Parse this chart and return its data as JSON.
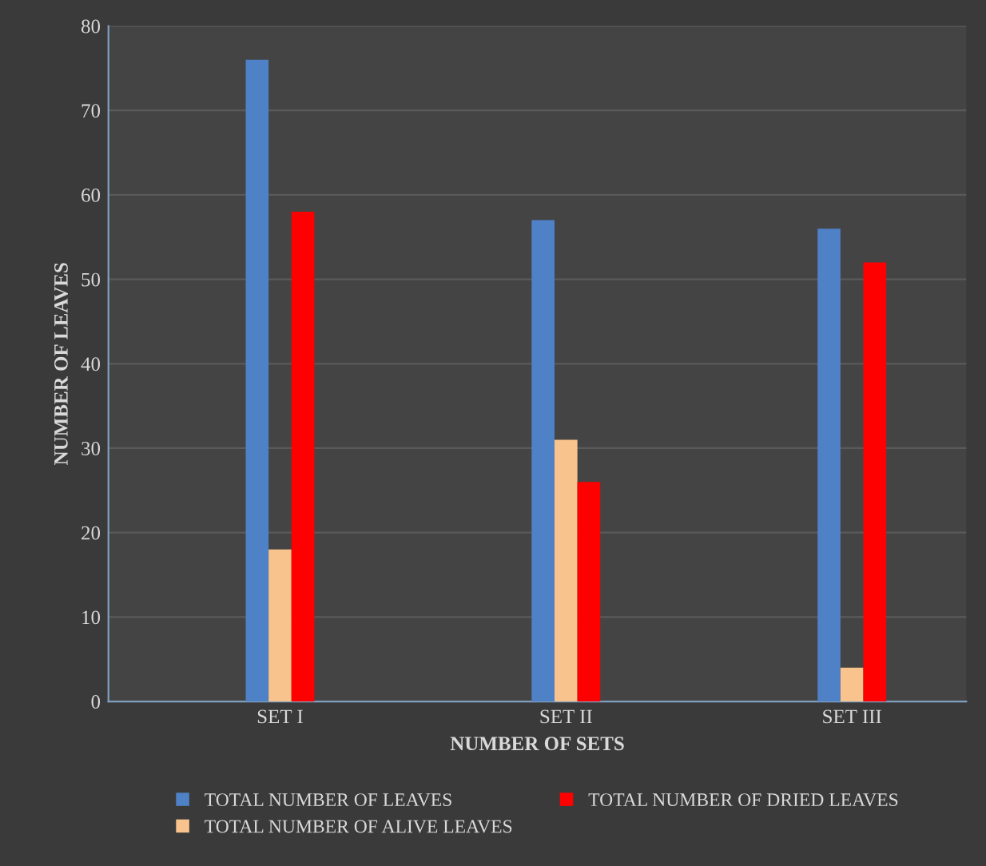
{
  "chart_data": {
    "type": "bar",
    "xlabel": "NUMBER OF SETS",
    "ylabel": "NUMBER OF LEAVES",
    "categories": [
      "SET I",
      "SET II",
      "SET III"
    ],
    "series": [
      {
        "name": "TOTAL NUMBER OF LEAVES",
        "color": "#4f81c7",
        "values": [
          76,
          57,
          56
        ]
      },
      {
        "name": "TOTAL NUMBER OF ALIVE LEAVES",
        "color": "#f9c38e",
        "values": [
          18,
          31,
          4
        ]
      },
      {
        "name": "TOTAL NUMBER OF DRIED LEAVES",
        "color": "#ff0000",
        "values": [
          58,
          26,
          52
        ]
      }
    ],
    "ylim": [
      0,
      80
    ],
    "yticks": [
      0,
      10,
      20,
      30,
      40,
      50,
      60,
      70,
      80
    ],
    "grid": "y",
    "legend": "bottom"
  }
}
